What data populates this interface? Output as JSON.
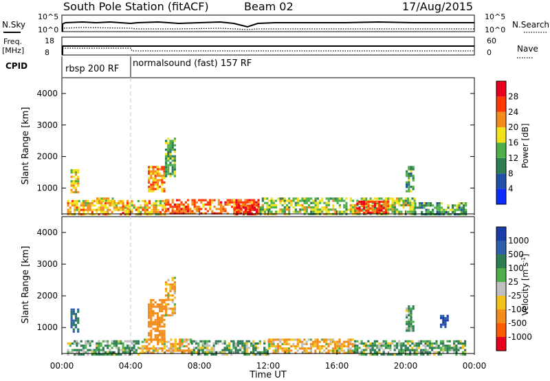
{
  "header": {
    "station": "South Pole Station (fitACF)",
    "beam": "Beam 02",
    "date": "17/Aug/2015"
  },
  "summary": {
    "nsky_label": "N.Sky",
    "nsearch_label": "N.Search",
    "nsky_ticks": [
      "10^5",
      "10^0"
    ],
    "nsearch_ticks": [
      "10^5",
      "10^0"
    ],
    "freq_label_1": "Freq.",
    "freq_label_2": "[MHz]",
    "freq_ticks": [
      "18",
      "8"
    ],
    "nave_label": "Nave",
    "nave_ticks": [
      "60",
      "0"
    ],
    "cpid_label": "CPID",
    "cpid_segments": [
      {
        "label": "rbsp 200 RF",
        "start_h": 0,
        "end_h": 4
      },
      {
        "label": "normalsound (fast) 157 RF",
        "start_h": 4,
        "end_h": 24
      }
    ]
  },
  "chart_data": [
    {
      "type": "heatmap",
      "name": "power",
      "ylabel": "Slant Range [km]",
      "xlabel": "",
      "xlim": [
        0,
        24
      ],
      "ylim": [
        180,
        4500
      ],
      "yticks": [
        1000,
        2000,
        3000,
        4000
      ],
      "colorbar": {
        "label": "Power [dB]",
        "ticks": [
          4,
          8,
          12,
          16,
          20,
          24,
          28
        ],
        "range": [
          0,
          32
        ],
        "colors": [
          "#0a2aff",
          "#1f4fa8",
          "#2e7d52",
          "#4fb04a",
          "#f2e21a",
          "#f28c1a",
          "#ff3a00",
          "#e8001c"
        ]
      },
      "patches": [
        {
          "t": [
            0.3,
            6.0
          ],
          "r": [
            180,
            620
          ],
          "value": 20
        },
        {
          "t": [
            6.0,
            11.5
          ],
          "r": [
            180,
            650
          ],
          "value": 24
        },
        {
          "t": [
            11.5,
            20.5
          ],
          "r": [
            180,
            700
          ],
          "value": 16
        },
        {
          "t": [
            20.5,
            23.5
          ],
          "r": [
            180,
            550
          ],
          "value": 12
        },
        {
          "t": [
            10.0,
            11.3
          ],
          "r": [
            180,
            480
          ],
          "value": 28
        },
        {
          "t": [
            17.0,
            19.0
          ],
          "r": [
            250,
            600
          ],
          "value": 26
        },
        {
          "t": [
            0.5,
            1.0
          ],
          "r": [
            900,
            1600
          ],
          "value": 18
        },
        {
          "t": [
            5.0,
            6.0
          ],
          "r": [
            900,
            1700
          ],
          "value": 22
        },
        {
          "t": [
            6.0,
            6.6
          ],
          "r": [
            1400,
            2600
          ],
          "value": 14
        },
        {
          "t": [
            2.0,
            3.0
          ],
          "r": [
            500,
            700
          ],
          "value": 20
        },
        {
          "t": [
            20.0,
            20.5
          ],
          "r": [
            900,
            1700
          ],
          "value": 12
        },
        {
          "t": [
            3.5,
            4.0
          ],
          "r": [
            180,
            450
          ],
          "value": 24
        }
      ]
    },
    {
      "type": "heatmap",
      "name": "velocity",
      "ylabel": "Slant Range [km]",
      "xlabel": "Time UT",
      "xlim": [
        0,
        24
      ],
      "ylim": [
        180,
        4500
      ],
      "yticks": [
        1000,
        2000,
        3000,
        4000
      ],
      "xticks": [
        "00:00",
        "04:00",
        "08:00",
        "12:00",
        "16:00",
        "20:00",
        "00:00"
      ],
      "colorbar": {
        "label": "Velocity [m s^-1]",
        "ticks": [
          1000,
          500,
          100,
          25,
          -25,
          -100,
          -500,
          -1000
        ],
        "colors": [
          "#1a3ca8",
          "#2e5fa8",
          "#2e7d52",
          "#4fb04a",
          "#bfbfbf",
          "#f2c21a",
          "#f28c1a",
          "#ff5a00",
          "#e8001c"
        ]
      },
      "patches": [
        {
          "t": [
            0.3,
            4.5
          ],
          "r": [
            180,
            600
          ],
          "value": 100
        },
        {
          "t": [
            4.5,
            7.5
          ],
          "r": [
            180,
            650
          ],
          "value": -100
        },
        {
          "t": [
            7.5,
            12.0
          ],
          "r": [
            180,
            600
          ],
          "value": 100
        },
        {
          "t": [
            12.0,
            17.0
          ],
          "r": [
            180,
            650
          ],
          "value": -100
        },
        {
          "t": [
            17.0,
            23.5
          ],
          "r": [
            180,
            600
          ],
          "value": 100
        },
        {
          "t": [
            5.0,
            6.0
          ],
          "r": [
            600,
            1900
          ],
          "value": -300
        },
        {
          "t": [
            6.0,
            6.6
          ],
          "r": [
            1400,
            2600
          ],
          "value": -100
        },
        {
          "t": [
            0.5,
            1.0
          ],
          "r": [
            900,
            1600
          ],
          "value": 500
        },
        {
          "t": [
            20.0,
            20.5
          ],
          "r": [
            900,
            1700
          ],
          "value": 100
        },
        {
          "t": [
            22.0,
            22.4
          ],
          "r": [
            1000,
            1400
          ],
          "value": 1000
        }
      ]
    }
  ]
}
